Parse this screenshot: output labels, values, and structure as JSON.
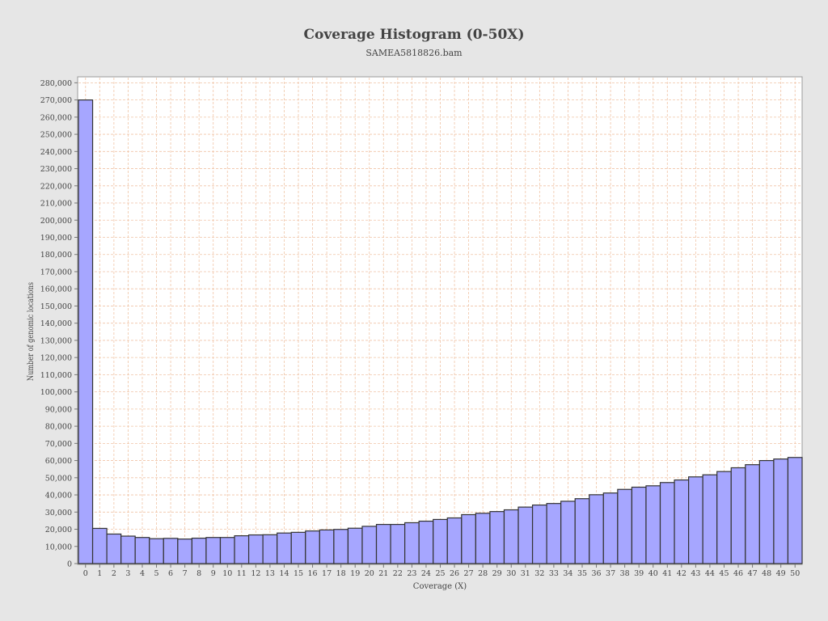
{
  "chart_data": {
    "type": "bar",
    "title": "Coverage Histogram (0-50X)",
    "subtitle": "SAMEA5818826.bam",
    "xlabel": "Coverage (X)",
    "ylabel": "Number of genomic locations",
    "ylim": [
      0,
      283000
    ],
    "ytick_step": 10000,
    "grid": true,
    "categories": [
      0,
      1,
      2,
      3,
      4,
      5,
      6,
      7,
      8,
      9,
      10,
      11,
      12,
      13,
      14,
      15,
      16,
      17,
      18,
      19,
      20,
      21,
      22,
      23,
      24,
      25,
      26,
      27,
      28,
      29,
      30,
      31,
      32,
      33,
      34,
      35,
      36,
      37,
      38,
      39,
      40,
      41,
      42,
      43,
      44,
      45,
      46,
      47,
      48,
      49,
      50
    ],
    "values": [
      270000,
      20500,
      17200,
      16000,
      15200,
      14500,
      14700,
      14300,
      14800,
      15200,
      15200,
      16200,
      16700,
      16800,
      17800,
      18200,
      19000,
      19600,
      19900,
      20600,
      21700,
      22800,
      22800,
      23800,
      24700,
      25700,
      26600,
      28500,
      29300,
      30300,
      31300,
      32900,
      34100,
      35000,
      36300,
      37800,
      40100,
      41100,
      43200,
      44500,
      45300,
      47200,
      48700,
      50500,
      51700,
      53600,
      55800,
      57600,
      60000,
      60900,
      61800
    ],
    "colors": {
      "bar_fill": "#a6a6ff",
      "bar_stroke": "#333333",
      "background": "#e6e6e6",
      "plot_background": "#ffffff",
      "grid": "#f0c4a6"
    }
  }
}
